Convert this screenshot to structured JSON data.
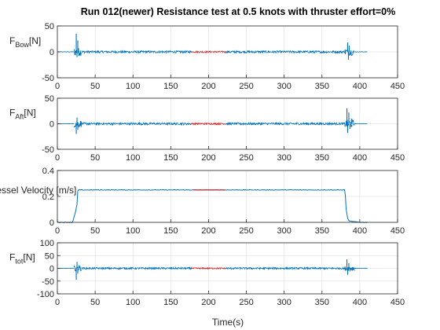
{
  "chart_data": {
    "title": "Run 012(newer) Resistance test at 0.5 knots with thruster effort=0%",
    "xlabel": "Time(s)",
    "colors": {
      "signal": "#0072bd",
      "window": "#d62728",
      "axes": "#262626",
      "grid": "#dcdcdc"
    },
    "panels": [
      {
        "type": "line",
        "ylabel_main": "F",
        "ylabel_sub": "Bow",
        "ylabel_unit": "[N]",
        "xlim": [
          0,
          450
        ],
        "ylim": [
          -50,
          50
        ],
        "xticks": [
          "0",
          "50",
          "100",
          "150",
          "200",
          "250",
          "300",
          "350",
          "400",
          "450"
        ],
        "yticks": [
          "50",
          "0",
          "-50"
        ],
        "ytick_values": [
          50,
          0,
          -50
        ],
        "grid": true,
        "series": [
          {
            "kind": "segments",
            "segments": [
              {
                "t0": 0,
                "t1": 22,
                "level": 0,
                "amp": 0.4
              },
              {
                "t0": 22,
                "t1": 32,
                "level": 0,
                "amp": 8
              },
              {
                "t0": 32,
                "t1": 178,
                "level": 0,
                "amp": 2.2
              },
              {
                "t0": 178,
                "t1": 222,
                "level": 0,
                "amp": 1.6,
                "window": true
              },
              {
                "t0": 222,
                "t1": 380,
                "level": 0,
                "amp": 2.2
              },
              {
                "t0": 380,
                "t1": 392,
                "level": 0,
                "amp": 7
              },
              {
                "t0": 392,
                "t1": 410,
                "level": 0,
                "amp": 0.4
              }
            ],
            "spikes": [
              {
                "t": 25,
                "v": 35
              },
              {
                "t": 26,
                "v": -10
              },
              {
                "t": 27,
                "v": 22
              },
              {
                "t": 28.5,
                "v": -8
              },
              {
                "t": 384,
                "v": 18
              },
              {
                "t": 385,
                "v": -15
              },
              {
                "t": 386,
                "v": 12
              },
              {
                "t": 387.5,
                "v": -6
              }
            ]
          }
        ]
      },
      {
        "type": "line",
        "ylabel_main": "F",
        "ylabel_sub": "Aft",
        "ylabel_unit": "[N]",
        "xlim": [
          0,
          450
        ],
        "ylim": [
          -50,
          50
        ],
        "xticks": [
          "0",
          "50",
          "100",
          "150",
          "200",
          "250",
          "300",
          "350",
          "400",
          "450"
        ],
        "yticks": [
          "50",
          "0",
          "-50"
        ],
        "ytick_values": [
          50,
          0,
          -50
        ],
        "grid": true,
        "series": [
          {
            "kind": "segments",
            "segments": [
              {
                "t0": 0,
                "t1": 22,
                "level": 0,
                "amp": 0.4
              },
              {
                "t0": 22,
                "t1": 32,
                "level": 0,
                "amp": 7
              },
              {
                "t0": 32,
                "t1": 178,
                "level": 0,
                "amp": 2.2
              },
              {
                "t0": 178,
                "t1": 222,
                "level": 0,
                "amp": 1.6,
                "window": true
              },
              {
                "t0": 222,
                "t1": 380,
                "level": 0,
                "amp": 2.2
              },
              {
                "t0": 380,
                "t1": 393,
                "level": 0,
                "amp": 8
              },
              {
                "t0": 393,
                "t1": 410,
                "level": 0,
                "amp": 0.4
              }
            ],
            "spikes": [
              {
                "t": 25,
                "v": -20
              },
              {
                "t": 26,
                "v": 12
              },
              {
                "t": 27,
                "v": -12
              },
              {
                "t": 383,
                "v": 30
              },
              {
                "t": 384,
                "v": -18
              },
              {
                "t": 385.5,
                "v": 22
              },
              {
                "t": 387,
                "v": -10
              },
              {
                "t": 389,
                "v": 10
              }
            ]
          }
        ]
      },
      {
        "type": "line",
        "ylabel_main": "Vessel Velocity [m/s]",
        "ylabel_sub": "",
        "ylabel_unit": "",
        "xlim": [
          0,
          450
        ],
        "ylim": [
          0,
          0.4
        ],
        "xticks": [
          "0",
          "50",
          "100",
          "150",
          "200",
          "250",
          "300",
          "350",
          "400",
          "450"
        ],
        "yticks": [
          "0.4",
          "0.2",
          "0"
        ],
        "ytick_values": [
          0.4,
          0.2,
          0
        ],
        "grid": true,
        "series": [
          {
            "kind": "profile",
            "points": [
              [
                0,
                0
              ],
              [
                20,
                0
              ],
              [
                24,
                0.08
              ],
              [
                26,
                0.14
              ],
              [
                27,
                0.24
              ],
              [
                28,
                0.25
              ],
              [
                380,
                0.25
              ],
              [
                381,
                0.2
              ],
              [
                382,
                0.1
              ],
              [
                384,
                0.03
              ],
              [
                386,
                0.01
              ],
              [
                400,
                0
              ],
              [
                410,
                0
              ]
            ],
            "window": [
              180,
              222
            ]
          }
        ]
      },
      {
        "type": "line",
        "ylabel_main": "F",
        "ylabel_sub": "tot",
        "ylabel_unit": "[N]",
        "xlim": [
          0,
          450
        ],
        "ylim": [
          -100,
          100
        ],
        "xticks": [
          "0",
          "50",
          "100",
          "150",
          "200",
          "250",
          "300",
          "350",
          "400",
          "450"
        ],
        "yticks": [
          "100",
          "50",
          "0",
          "-50",
          "-100"
        ],
        "ytick_values": [
          100,
          50,
          0,
          -50,
          -100
        ],
        "grid": true,
        "series": [
          {
            "kind": "segments",
            "segments": [
              {
                "t0": 0,
                "t1": 22,
                "level": 0,
                "amp": 0.6
              },
              {
                "t0": 22,
                "t1": 32,
                "level": 0,
                "amp": 10
              },
              {
                "t0": 32,
                "t1": 178,
                "level": 0,
                "amp": 3.5
              },
              {
                "t0": 178,
                "t1": 222,
                "level": 0,
                "amp": 2.5,
                "window": true
              },
              {
                "t0": 222,
                "t1": 380,
                "level": 0,
                "amp": 3.5
              },
              {
                "t0": 380,
                "t1": 393,
                "level": 0,
                "amp": 10
              },
              {
                "t0": 393,
                "t1": 410,
                "level": 0,
                "amp": 0.6
              }
            ],
            "spikes": [
              {
                "t": 25,
                "v": -45
              },
              {
                "t": 26,
                "v": 25
              },
              {
                "t": 27,
                "v": -20
              },
              {
                "t": 28.5,
                "v": 12
              },
              {
                "t": 383,
                "v": 35
              },
              {
                "t": 384,
                "v": -25
              },
              {
                "t": 385.5,
                "v": 20
              },
              {
                "t": 387,
                "v": -12
              }
            ]
          }
        ]
      }
    ]
  }
}
